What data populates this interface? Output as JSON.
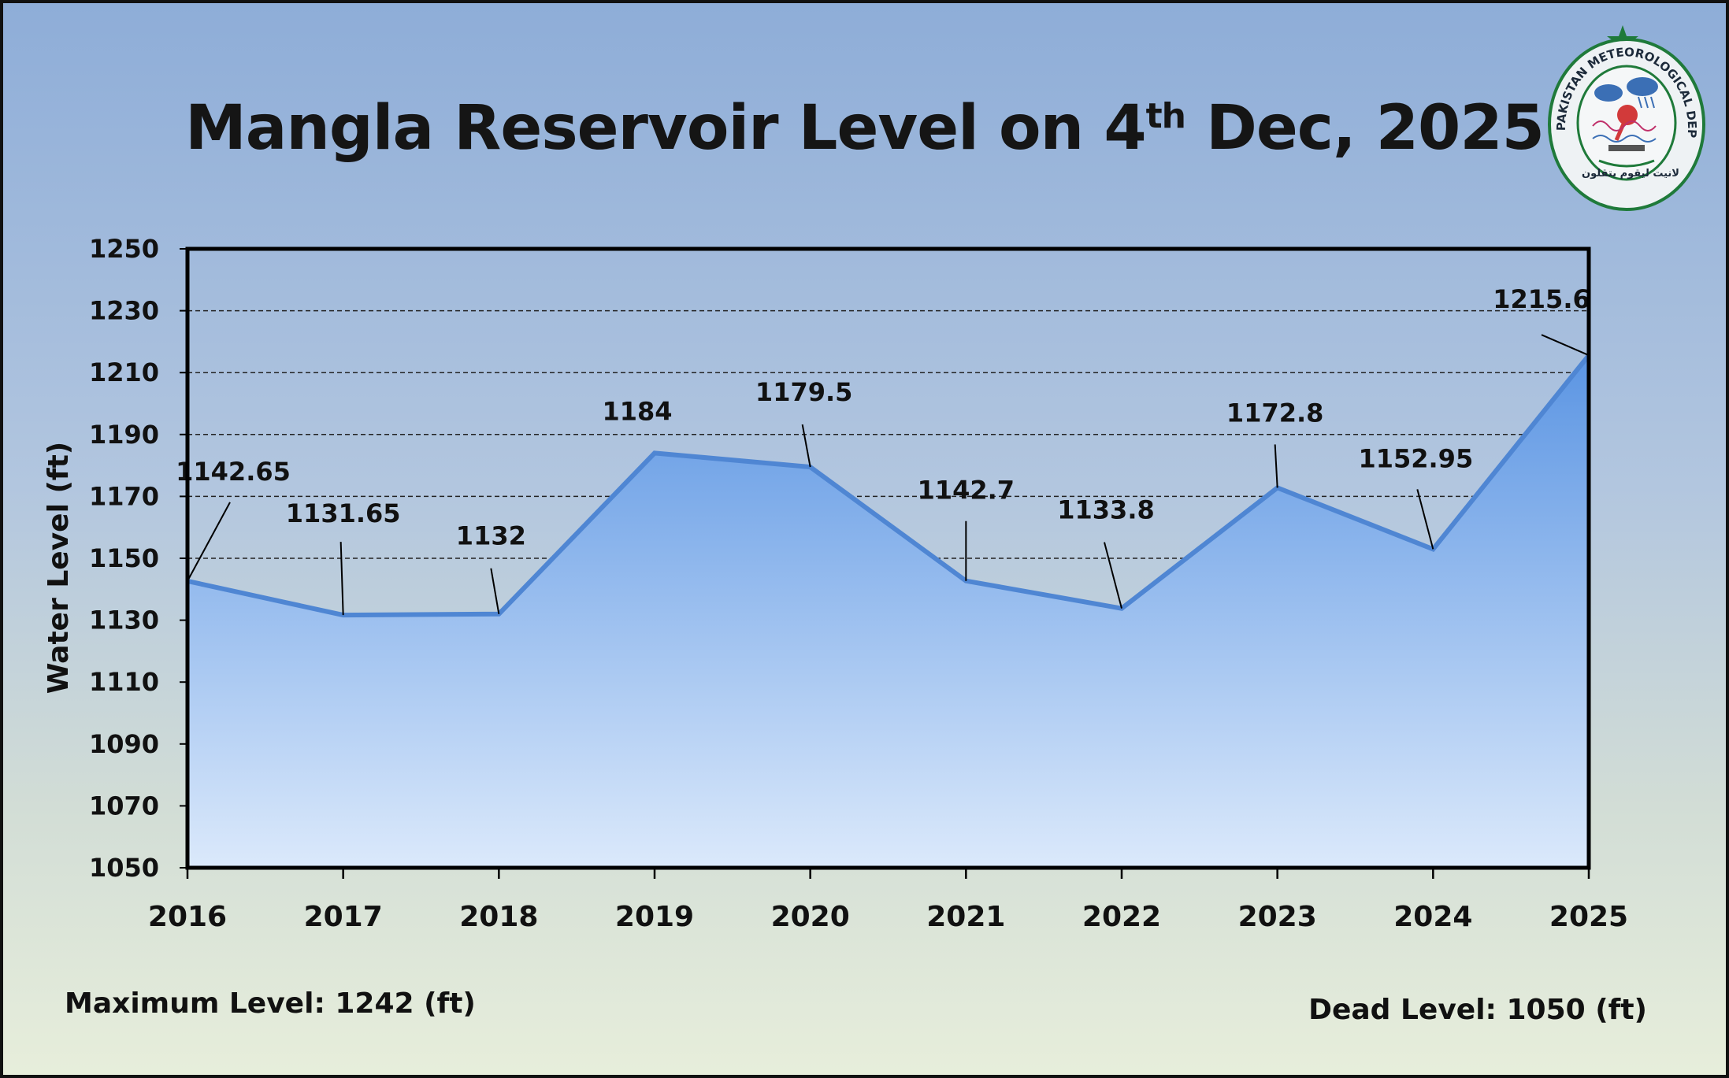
{
  "title": {
    "main": "Mangla Reservoir Level on 4",
    "superscript": "th",
    "rest": " Dec, 2025"
  },
  "notes": {
    "max_level": "Maximum Level: 1242 (ft)",
    "dead_level": "Dead Level: 1050 (ft)"
  },
  "logo": {
    "text": "PAKISTAN METEOROLOGICAL DEPARTMENT",
    "motto": "لانيت ليقوم يتقلون"
  },
  "colors": {
    "fill_top": "#5b95e3",
    "fill_bottom": "#dbe9fb",
    "line": "#4f86d3",
    "grid": "#222222",
    "plot_border": "#000000"
  },
  "chart_data": {
    "type": "area",
    "x": [
      "2016",
      "2017",
      "2018",
      "2019",
      "2020",
      "2021",
      "2022",
      "2023",
      "2024",
      "2025"
    ],
    "series": [
      {
        "values": [
          1142.65,
          1131.65,
          1132,
          1184,
          1179.5,
          1142.7,
          1133.8,
          1172.8,
          1152.95,
          1215.6
        ]
      }
    ],
    "data_labels": [
      "1142.65",
      "1131.65",
      "1132",
      "1184",
      "1179.5",
      "1142.7",
      "1133.8",
      "1172.8",
      "1152.95",
      "1215.6"
    ],
    "ylabel": "Water Level (ft)",
    "xlabel": "",
    "ylim": [
      1050,
      1250
    ],
    "yticks": [
      1050,
      1070,
      1090,
      1110,
      1130,
      1150,
      1170,
      1190,
      1210,
      1230,
      1250
    ],
    "grid": "horizontal dashed",
    "legend": "none"
  }
}
